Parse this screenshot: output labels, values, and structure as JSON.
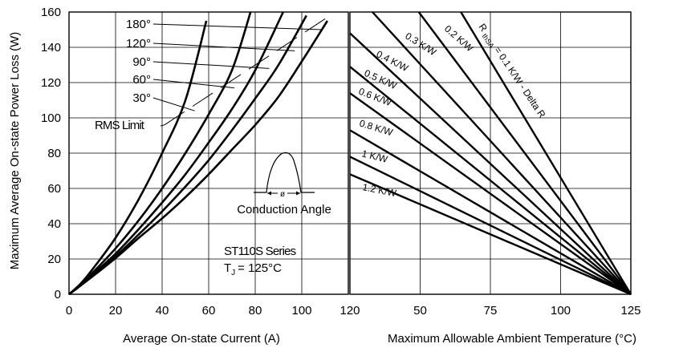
{
  "chart_data": {
    "type": "line",
    "ylabel": "Maximum Average On-state Power Loss (W)",
    "ylim": [
      0,
      160
    ],
    "yticks": [
      0,
      20,
      40,
      60,
      80,
      100,
      120,
      140,
      160
    ],
    "grid": true,
    "left_panel": {
      "xlabel": "Average On-state Current (A)",
      "xlim": [
        0,
        120
      ],
      "xticks": [
        0,
        20,
        40,
        60,
        80,
        100,
        120
      ],
      "series": [
        {
          "name": "180°",
          "x": [
            0,
            5,
            10,
            20,
            30,
            40,
            50,
            60,
            70,
            80,
            90,
            100,
            111
          ],
          "y": [
            0,
            5,
            10,
            20.5,
            32,
            43,
            55,
            68,
            82,
            96,
            112,
            132,
            155
          ]
        },
        {
          "name": "120°",
          "x": [
            0,
            5,
            10,
            20,
            30,
            40,
            50,
            60,
            70,
            80,
            90,
            102
          ],
          "y": [
            0,
            5,
            10.5,
            21.5,
            34,
            47,
            61,
            76,
            93,
            111,
            130,
            158
          ]
        },
        {
          "name": "90°",
          "x": [
            0,
            5,
            10,
            20,
            30,
            40,
            50,
            60,
            70,
            80,
            92
          ],
          "y": [
            0,
            5,
            11,
            23,
            37,
            52,
            68,
            86,
            105,
            127,
            160
          ]
        },
        {
          "name": "60°",
          "x": [
            0,
            5,
            10,
            20,
            30,
            40,
            50,
            60,
            70,
            78
          ],
          "y": [
            0,
            5.5,
            12,
            26,
            42,
            60,
            80,
            102,
            127,
            160
          ]
        },
        {
          "name": "30°",
          "x": [
            0,
            5,
            10,
            20,
            30,
            40,
            50,
            59
          ],
          "y": [
            0,
            6,
            14,
            32,
            54,
            80,
            110,
            155
          ]
        }
      ],
      "rms_limit": {
        "label": "RMS Limit",
        "x": [
          41,
          111
        ],
        "y": [
          96,
          157
        ]
      },
      "series_label_leaders": [
        {
          "name": "180°",
          "to": [
            109,
            150
          ]
        },
        {
          "name": "120°",
          "to": [
            97,
            138
          ]
        },
        {
          "name": "90°",
          "to": [
            86,
            128
          ]
        },
        {
          "name": "60°",
          "to": [
            71,
            117
          ]
        },
        {
          "name": "30°",
          "to": [
            54,
            104
          ]
        }
      ],
      "inset_label": "Conduction Angle",
      "inset_symbol": "ø",
      "series_title": "ST110S Series",
      "tj_label": "T",
      "tj_subscript": "J",
      "tj_value": "= 125°C"
    },
    "right_panel": {
      "xlabel": "Maximum Allowable Ambient Temperature (°C)",
      "xlim": [
        25,
        125
      ],
      "xticks": [
        25,
        50,
        75,
        100,
        125
      ],
      "xtick_labels": [
        "",
        "50",
        "75",
        "100",
        "125"
      ],
      "thermal_resistance_lines": [
        {
          "label": "0.1 K/W - Delta R",
          "prefix": "R",
          "subscript": "thSA",
          "x_at_160": 64.5
        },
        {
          "label": "0.2 K/W",
          "x_at_160": 49.5
        },
        {
          "label": "0.3 K/W",
          "x_at_160": 33
        },
        {
          "label": "0.4 K/W",
          "y_at_25": 148
        },
        {
          "label": "0.5 K/W",
          "y_at_25": 129
        },
        {
          "label": "0.6 K/W",
          "y_at_25": 114
        },
        {
          "label": "0.8 K/W",
          "y_at_25": 93
        },
        {
          "label": "1 K/W",
          "y_at_25": 78
        },
        {
          "label": "1.2 K/W",
          "y_at_25": 68
        }
      ],
      "line_end": [
        125,
        0
      ]
    }
  }
}
